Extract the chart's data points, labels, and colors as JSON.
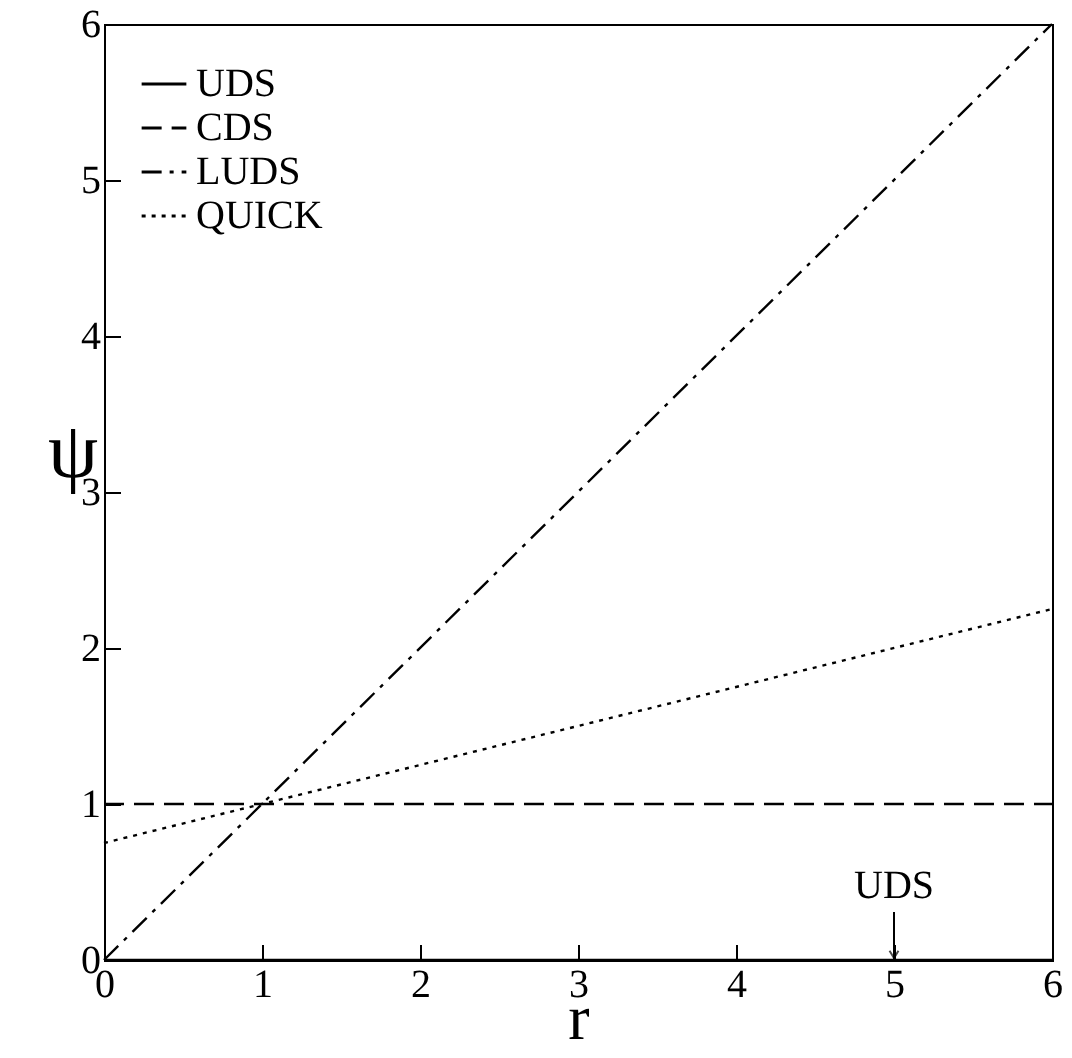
{
  "chart_data": {
    "type": "line",
    "xlabel": "r",
    "ylabel": "ψ",
    "x": [
      0,
      6
    ],
    "series": [
      {
        "name": "UDS",
        "color": "#000000",
        "line_style": "solid",
        "values": [
          0,
          0
        ]
      },
      {
        "name": "CDS",
        "color": "#000000",
        "line_style": "dashed",
        "values": [
          1,
          1
        ]
      },
      {
        "name": "LUDS",
        "color": "#000000",
        "line_style": "dashdot",
        "values": [
          0,
          6
        ]
      },
      {
        "name": "QUICK",
        "color": "#000000",
        "line_style": "dotted",
        "values": [
          0.75,
          2.25
        ]
      }
    ],
    "xlim": [
      0,
      6
    ],
    "ylim": [
      0,
      6
    ],
    "xticks": [
      0,
      1,
      2,
      3,
      4,
      5,
      6
    ],
    "yticks": [
      0,
      1,
      2,
      3,
      4,
      5,
      6
    ],
    "grid": false,
    "legend": "top left",
    "marker": "none",
    "annotations": [
      {
        "text": "UDS",
        "x": 5,
        "y": 0
      }
    ]
  }
}
